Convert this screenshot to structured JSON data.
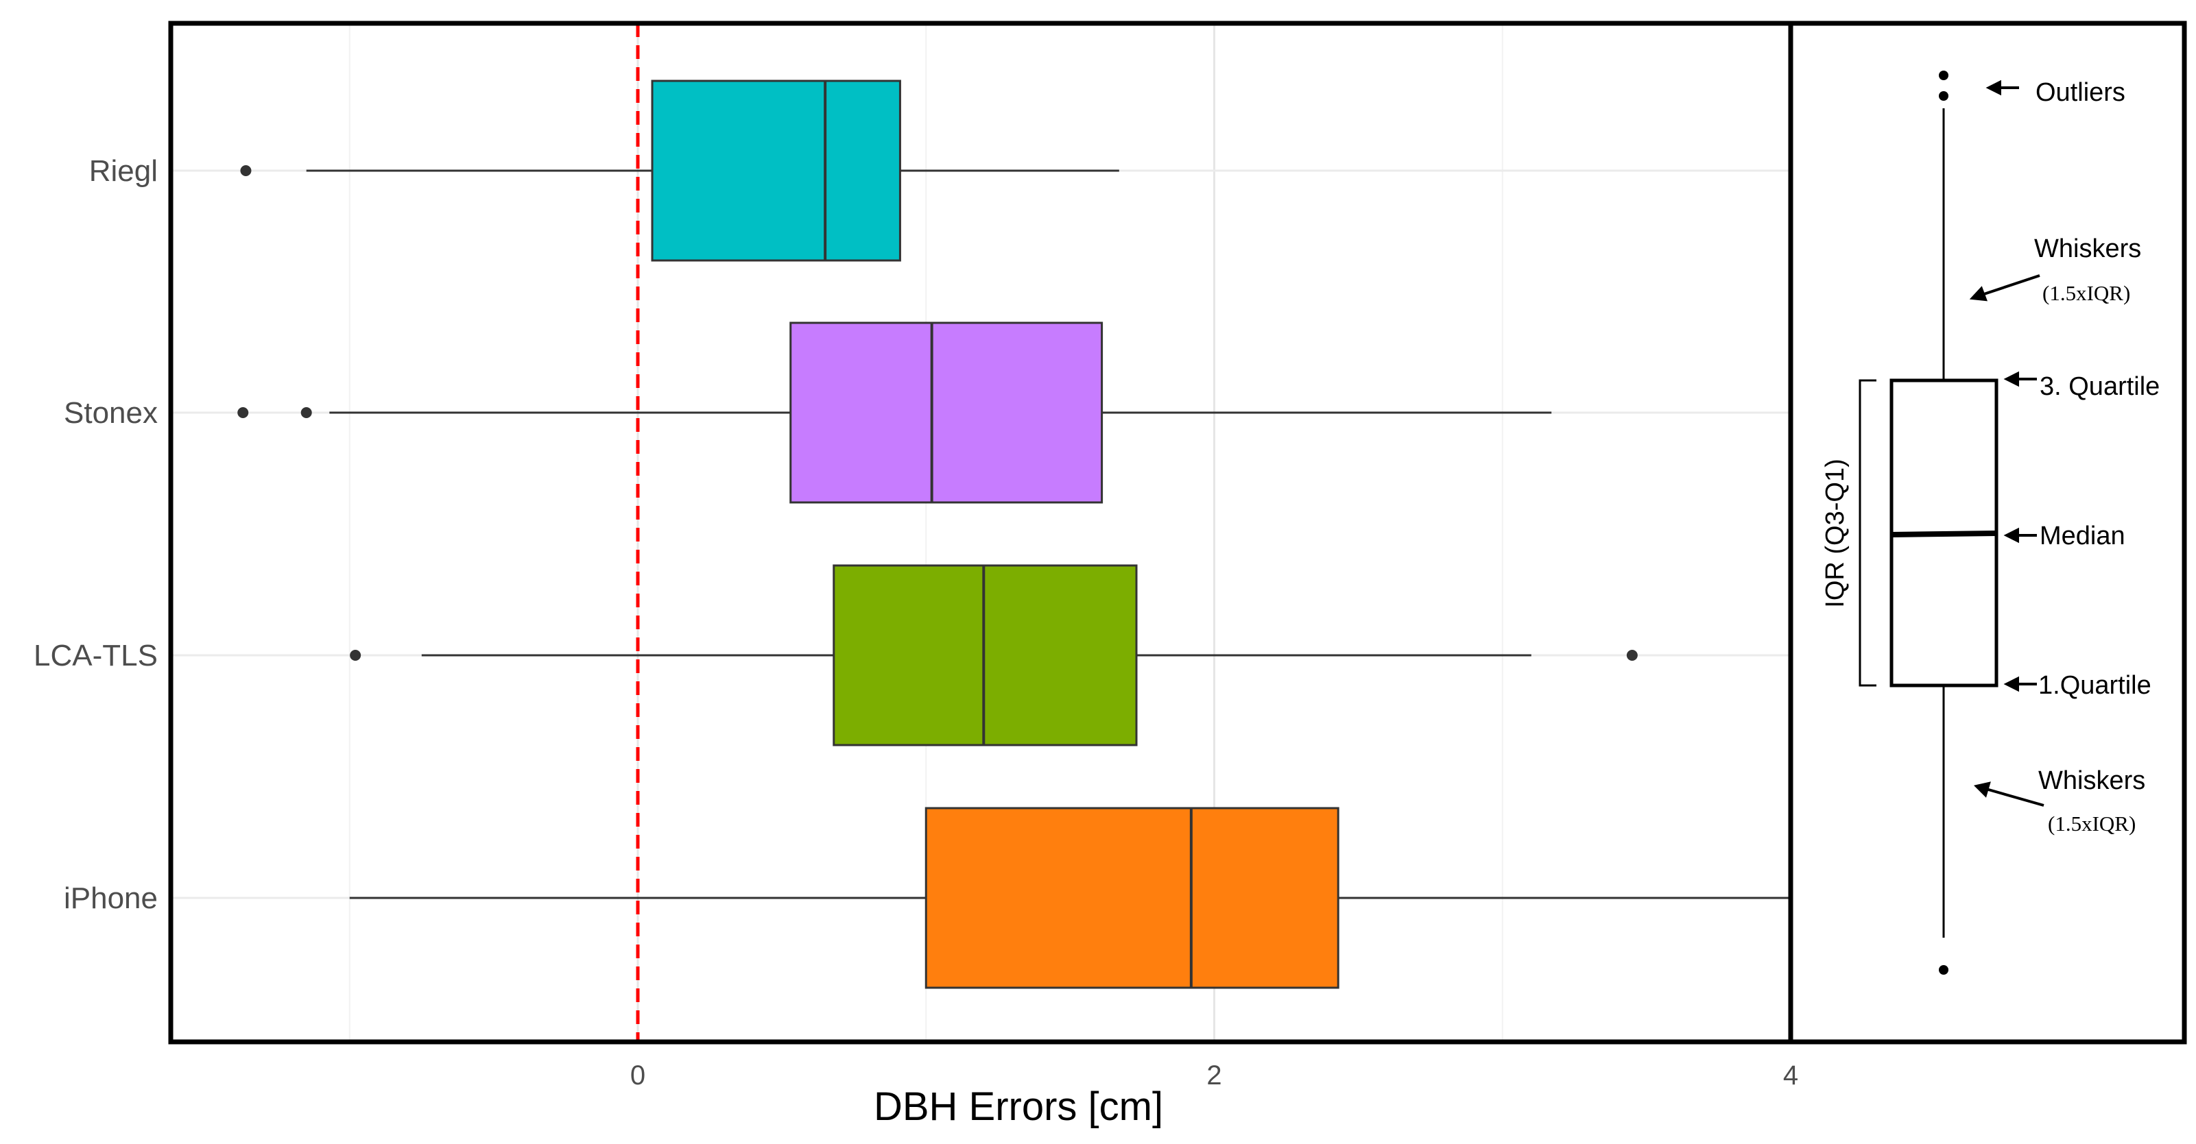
{
  "chart_data": {
    "type": "boxplot",
    "orientation": "horizontal",
    "xlabel": "DBH Errors [cm]",
    "ylabel": "",
    "xlim": [
      -1.63,
      4.0
    ],
    "xticks": [
      0,
      2,
      4
    ],
    "grid": true,
    "reference_line": {
      "x": 0,
      "style": "dashed",
      "color": "#ff0000"
    },
    "categories": [
      "Riegl",
      "Stonex",
      "LCA-TLS",
      "iPhone"
    ],
    "series": [
      {
        "category": "Riegl",
        "color": "#00bfc4",
        "whisker_low": -1.15,
        "q1": 0.05,
        "median": 0.65,
        "q3": 0.91,
        "whisker_high": 1.67,
        "outliers": [
          -1.36
        ]
      },
      {
        "category": "Stonex",
        "color": "#c77cff",
        "whisker_low": -1.07,
        "q1": 0.53,
        "median": 1.02,
        "q3": 1.61,
        "whisker_high": 3.17,
        "outliers": [
          -1.37,
          -1.15
        ]
      },
      {
        "category": "LCA-TLS",
        "color": "#7cae00",
        "whisker_low": -0.75,
        "q1": 0.68,
        "median": 1.2,
        "q3": 1.73,
        "whisker_high": 3.1,
        "outliers": [
          -0.98,
          3.45
        ]
      },
      {
        "category": "iPhone",
        "color": "#ff7f0e",
        "whisker_low": -1.0,
        "q1": 1.0,
        "median": 1.92,
        "q3": 2.43,
        "whisker_high": 4.0,
        "outliers": []
      }
    ],
    "legend": {
      "position": "right",
      "labels": {
        "outliers": "Outliers",
        "whiskers": "Whiskers",
        "whiskers_note": "(1.5xIQR)",
        "q3": "3. Quartile",
        "median": "Median",
        "q1": "1.Quartile",
        "iqr": "IQR (Q3-Q1)"
      }
    }
  }
}
